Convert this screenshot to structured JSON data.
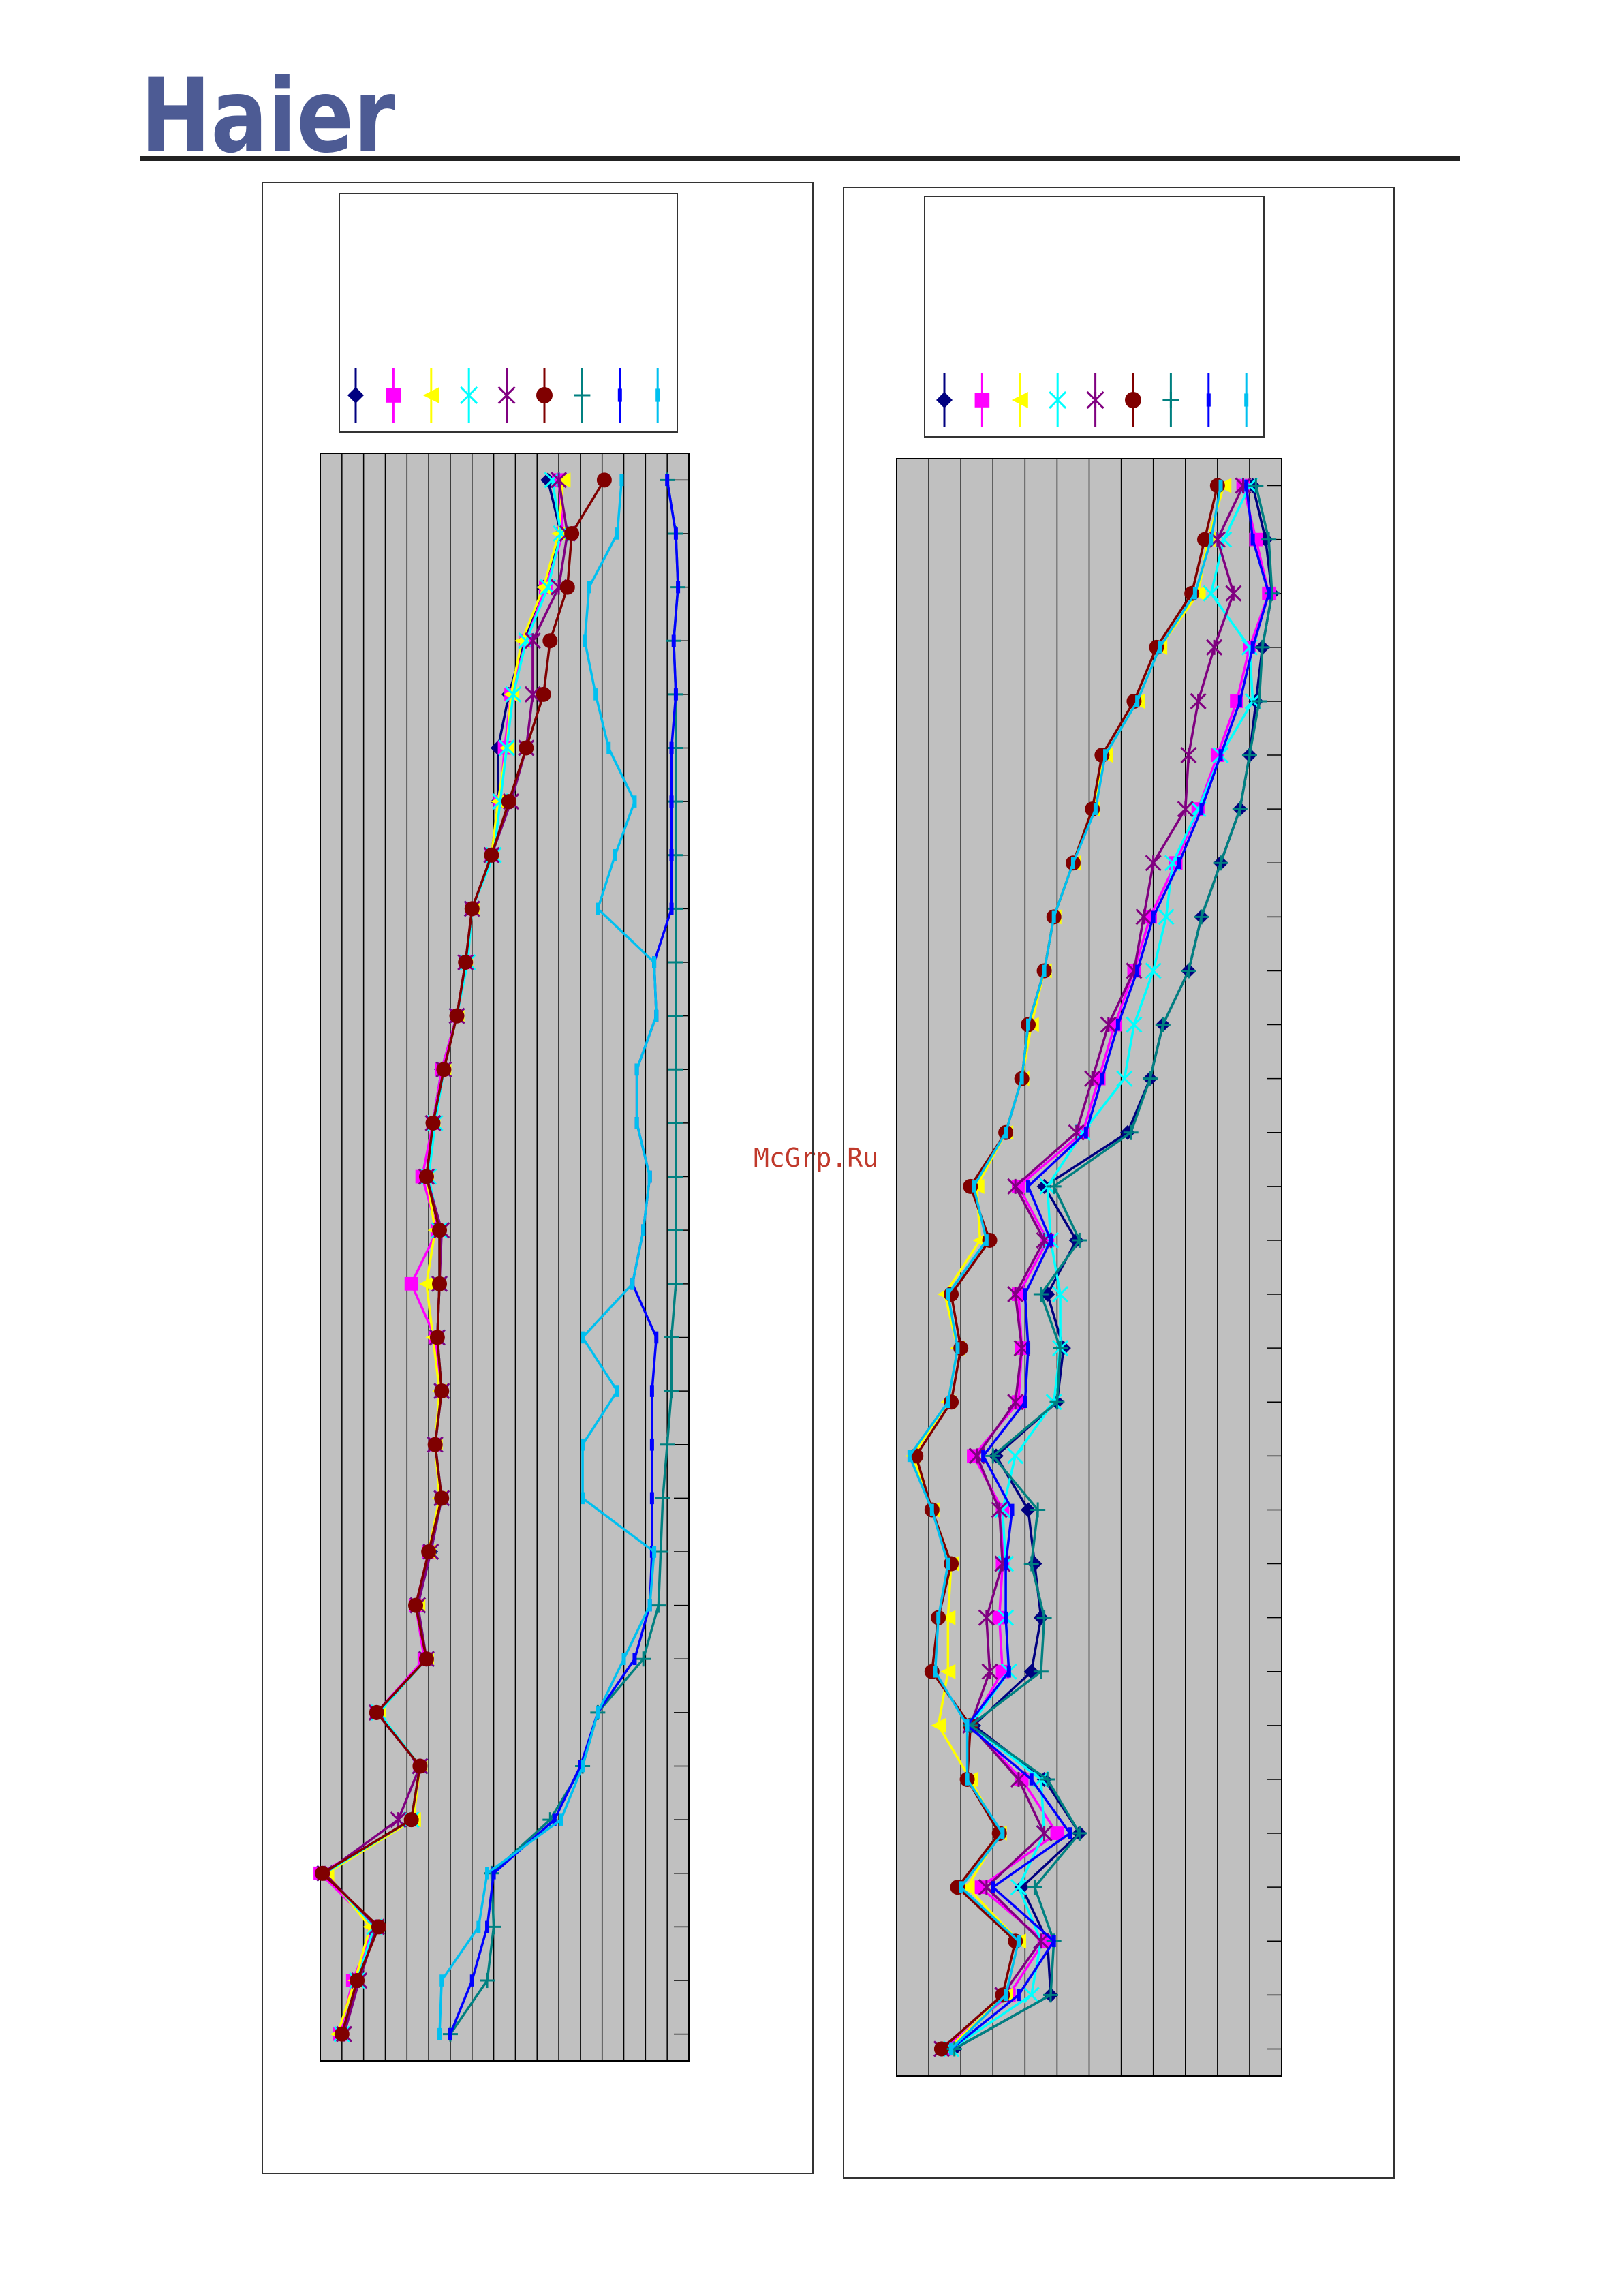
{
  "header": {
    "logo": "Haier"
  },
  "watermark": "McGrp.Ru",
  "chart_data": [
    {
      "type": "line",
      "categories": [
        null,
        null,
        null,
        null,
        null,
        null,
        null,
        null,
        null,
        null,
        null,
        null,
        null,
        null,
        null,
        null,
        null,
        null,
        null,
        null,
        null,
        null,
        null,
        null,
        null,
        null,
        null,
        null,
        null,
        null
      ],
      "xlim": [
        0,
        17
      ],
      "xticks": [
        0,
        1,
        2,
        3,
        4,
        5,
        6,
        7,
        8,
        9,
        10,
        11,
        12,
        13,
        14,
        15,
        16,
        17
      ],
      "grid": true,
      "series": [
        {
          "color": "#000080",
          "marker": "diamond",
          "values": [
            10.5,
            11.1,
            10.3,
            9.4,
            8.7,
            8.2,
            8.2,
            7.9,
            7.0,
            6.7,
            6.3,
            5.6,
            5.2,
            4.9,
            5.5,
            5.5,
            5.4,
            5.6,
            5.3,
            5.6,
            5.1,
            4.4,
            4.9,
            2.6,
            4.6,
            4.2,
            0.1,
            2.6,
            1.7,
            1.0
          ]
        },
        {
          "color": "#ff00ff",
          "marker": "square",
          "values": [
            11.0,
            11.2,
            10.4,
            9.5,
            8.8,
            8.5,
            8.3,
            7.9,
            7.0,
            6.7,
            6.3,
            5.6,
            5.2,
            4.7,
            5.4,
            4.2,
            5.3,
            5.6,
            5.3,
            5.6,
            5.0,
            4.4,
            4.8,
            2.6,
            4.6,
            4.3,
            0.0,
            2.5,
            1.5,
            0.9
          ]
        },
        {
          "color": "#ffff00",
          "marker": "triangle",
          "values": [
            11.2,
            11.0,
            10.3,
            9.3,
            8.8,
            8.6,
            8.2,
            7.9,
            7.0,
            6.7,
            6.3,
            5.7,
            5.2,
            4.9,
            5.3,
            4.9,
            5.2,
            5.5,
            5.3,
            5.5,
            5.0,
            4.5,
            4.9,
            2.7,
            4.6,
            4.3,
            0.3,
            2.3,
            1.6,
            0.8
          ]
        },
        {
          "color": "#00ffff",
          "marker": "x",
          "values": [
            10.7,
            11.1,
            10.5,
            9.5,
            8.9,
            8.6,
            8.3,
            8.0,
            7.0,
            6.8,
            6.3,
            5.7,
            5.3,
            5.0,
            5.5,
            5.5,
            5.4,
            5.6,
            5.3,
            5.6,
            5.1,
            4.5,
            4.9,
            2.7,
            4.6,
            4.2,
            0.2,
            2.5,
            1.7,
            1.0
          ]
        },
        {
          "color": "#800080",
          "marker": "star",
          "values": [
            11.0,
            11.4,
            11.0,
            9.8,
            9.8,
            9.5,
            8.8,
            7.9,
            7.0,
            6.7,
            6.3,
            5.7,
            5.2,
            4.9,
            5.6,
            5.5,
            5.4,
            5.6,
            5.3,
            5.6,
            5.1,
            4.5,
            4.9,
            2.6,
            4.6,
            3.6,
            0.2,
            2.6,
            1.8,
            1.1
          ]
        },
        {
          "color": "#800000",
          "marker": "circle",
          "values": [
            13.1,
            11.6,
            11.4,
            10.6,
            10.3,
            9.5,
            8.7,
            7.9,
            7.0,
            6.7,
            6.3,
            5.7,
            5.2,
            4.9,
            5.5,
            5.5,
            5.4,
            5.6,
            5.3,
            5.6,
            5.0,
            4.4,
            4.9,
            2.6,
            4.6,
            4.2,
            0.1,
            2.7,
            1.7,
            1.0
          ]
        },
        {
          "color": "#008080",
          "marker": "plus",
          "values": [
            16.0,
            16.4,
            16.5,
            16.3,
            16.4,
            16.4,
            16.4,
            16.4,
            16.4,
            16.4,
            16.4,
            16.4,
            16.4,
            16.4,
            16.4,
            16.4,
            16.2,
            16.2,
            16.0,
            15.8,
            15.7,
            15.6,
            14.9,
            12.8,
            12.1,
            10.6,
            7.9,
            8.0,
            7.7,
            6.0
          ]
        },
        {
          "color": "#0000ff",
          "marker": "bar",
          "values": [
            16.0,
            16.4,
            16.5,
            16.3,
            16.4,
            16.2,
            16.2,
            16.2,
            16.2,
            15.4,
            15.5,
            14.6,
            14.6,
            15.2,
            14.9,
            14.4,
            15.5,
            15.3,
            15.3,
            15.3,
            15.3,
            15.2,
            14.5,
            12.8,
            12.0,
            10.8,
            8.0,
            7.7,
            7.0,
            6.0
          ]
        },
        {
          "color": "#00c0f0",
          "marker": "bar",
          "values": [
            13.9,
            13.7,
            12.4,
            12.2,
            12.7,
            13.3,
            14.5,
            13.6,
            12.8,
            15.4,
            15.5,
            14.6,
            14.6,
            15.2,
            14.9,
            14.4,
            12.1,
            13.7,
            12.1,
            12.1,
            15.4,
            15.2,
            14.0,
            12.8,
            12.1,
            11.1,
            7.7,
            7.3,
            5.6,
            5.5
          ]
        }
      ]
    },
    {
      "type": "line",
      "categories": [
        null,
        null,
        null,
        null,
        null,
        null,
        null,
        null,
        null,
        null,
        null,
        null,
        null,
        null,
        null,
        null,
        null,
        null,
        null,
        null,
        null,
        null,
        null,
        null,
        null,
        null,
        null,
        null,
        null,
        null
      ],
      "xlim": [
        0,
        12
      ],
      "xticks": [
        0,
        1,
        2,
        3,
        4,
        5,
        6,
        7,
        8,
        9,
        10,
        11,
        12
      ],
      "grid": true,
      "series": [
        {
          "color": "#000080",
          "marker": "diamond",
          "values": [
            11.1,
            11.5,
            11.7,
            11.4,
            11.2,
            11.0,
            10.7,
            10.1,
            9.5,
            9.1,
            8.3,
            7.9,
            7.2,
            4.6,
            5.6,
            4.7,
            5.2,
            5.0,
            3.1,
            4.1,
            4.3,
            4.5,
            4.2,
            2.4,
            4.6,
            5.7,
            3.9,
            4.7,
            4.8,
            1.8
          ]
        },
        {
          "color": "#ff00ff",
          "marker": "square",
          "values": [
            10.8,
            11.2,
            11.6,
            11.0,
            10.6,
            10.0,
            9.4,
            8.7,
            7.9,
            7.4,
            6.8,
            6.3,
            5.8,
            3.8,
            4.7,
            3.8,
            3.9,
            3.8,
            2.4,
            3.3,
            3.3,
            3.2,
            3.3,
            2.3,
            3.9,
            5.0,
            2.6,
            4.6,
            3.5,
            1.5
          ]
        },
        {
          "color": "#ffff00",
          "marker": "triangle",
          "values": [
            10.2,
            9.7,
            9.4,
            8.2,
            7.5,
            6.5,
            6.1,
            5.5,
            4.9,
            4.6,
            4.2,
            3.9,
            3.4,
            2.5,
            2.6,
            1.5,
            1.9,
            1.6,
            0.5,
            1.1,
            1.7,
            1.6,
            1.6,
            1.3,
            2.3,
            3.2,
            2.2,
            3.8,
            3.4,
            1.6
          ]
        },
        {
          "color": "#00ffff",
          "marker": "x",
          "values": [
            11.0,
            10.2,
            9.8,
            11.0,
            11.1,
            10.1,
            9.4,
            8.6,
            8.4,
            8.0,
            7.4,
            7.1,
            5.8,
            4.7,
            4.8,
            5.1,
            5.1,
            4.9,
            3.7,
            3.3,
            3.4,
            3.4,
            3.5,
            2.3,
            4.5,
            4.6,
            3.8,
            4.5,
            4.2,
            1.7
          ]
        },
        {
          "color": "#800080",
          "marker": "star",
          "values": [
            10.8,
            10.0,
            10.5,
            9.9,
            9.4,
            9.1,
            9.0,
            8.0,
            7.7,
            7.4,
            6.6,
            6.1,
            5.6,
            3.7,
            4.6,
            3.7,
            3.9,
            3.7,
            2.5,
            3.2,
            3.3,
            2.8,
            2.9,
            2.3,
            3.8,
            4.6,
            2.8,
            4.5,
            3.3,
            1.4
          ]
        },
        {
          "color": "#800000",
          "marker": "circle",
          "values": [
            10.0,
            9.6,
            9.2,
            8.1,
            7.4,
            6.4,
            6.1,
            5.5,
            4.9,
            4.6,
            4.1,
            3.9,
            3.4,
            2.3,
            2.9,
            1.7,
            2.0,
            1.7,
            0.6,
            1.1,
            1.7,
            1.3,
            1.1,
            2.3,
            2.2,
            3.2,
            1.9,
            3.7,
            3.3,
            1.4
          ]
        },
        {
          "color": "#008080",
          "marker": "plus",
          "values": [
            11.2,
            11.6,
            11.7,
            11.4,
            11.3,
            11.0,
            10.7,
            10.1,
            9.5,
            9.1,
            8.3,
            7.9,
            7.3,
            4.9,
            5.7,
            4.5,
            5.1,
            5.0,
            3.0,
            4.4,
            4.2,
            4.6,
            4.5,
            2.3,
            4.7,
            5.7,
            4.3,
            4.9,
            4.8,
            1.8
          ]
        },
        {
          "color": "#0000ff",
          "marker": "bar",
          "values": [
            10.9,
            11.1,
            11.6,
            11.1,
            10.7,
            10.1,
            9.5,
            8.8,
            8.0,
            7.5,
            6.9,
            6.4,
            5.9,
            4.1,
            4.8,
            4.0,
            4.1,
            4.0,
            2.7,
            3.6,
            3.4,
            3.4,
            3.5,
            2.2,
            4.2,
            5.4,
            3.0,
            4.9,
            3.8,
            1.7
          ]
        },
        {
          "color": "#00c0f0",
          "marker": "bar",
          "values": [
            10.1,
            9.8,
            9.3,
            8.2,
            7.5,
            6.5,
            6.2,
            5.5,
            4.9,
            4.6,
            4.1,
            3.9,
            3.4,
            2.4,
            2.8,
            1.6,
            1.9,
            1.6,
            0.4,
            1.1,
            1.6,
            1.3,
            1.2,
            2.2,
            2.2,
            3.3,
            2.0,
            3.8,
            3.4,
            1.7
          ]
        }
      ]
    }
  ]
}
